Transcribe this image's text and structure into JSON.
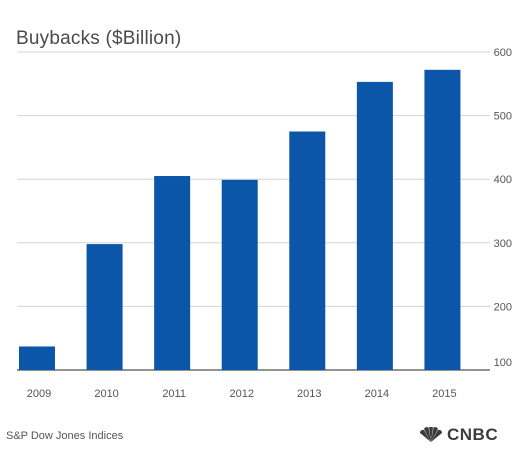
{
  "source": "S&P Dow Jones Indices",
  "brand": "CNBC",
  "colors": {
    "bar": "#0b56a8",
    "grid": "#d4d4d4",
    "axis": "#6f6f6f",
    "text": "#555555"
  },
  "chart_data": {
    "type": "bar",
    "title": "Buybacks ($Billion)",
    "xlabel": "",
    "ylabel": "",
    "categories": [
      "2009",
      "2010",
      "2011",
      "2012",
      "2013",
      "2014",
      "2015"
    ],
    "values": [
      137,
      298,
      405,
      399,
      475,
      553,
      572
    ],
    "ylim": [
      100,
      600
    ],
    "yticks": [
      100,
      200,
      300,
      400,
      500,
      600
    ],
    "y_axis_position": "right",
    "grid": true,
    "legend": "none"
  }
}
